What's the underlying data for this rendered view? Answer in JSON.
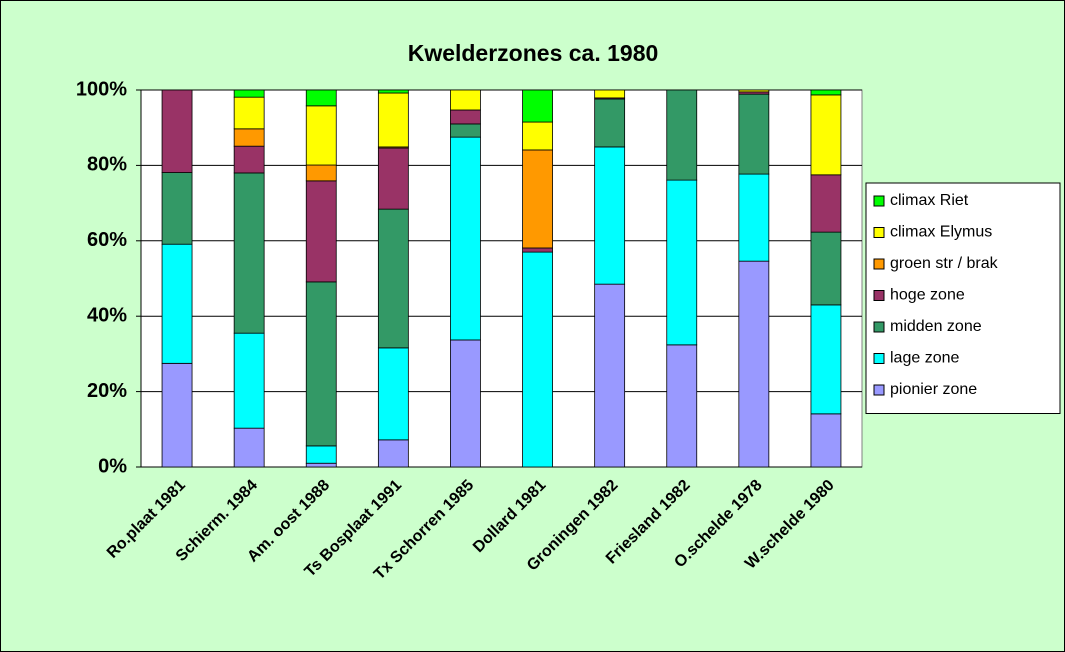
{
  "chart_data": {
    "type": "stacked_bar",
    "title": "Kwelderzones ca. 1980",
    "categories": [
      "Ro.plaat 1981",
      "Schierm. 1984",
      "Am. oost 1988",
      "Ts Bosplaat 1991",
      "Tx Schorren 1985",
      "Dollard 1981",
      "Groningen 1982",
      "Friesland 1982",
      "O.schelde 1978",
      "W.schelde 1980"
    ],
    "series": [
      {
        "name": "pionier zone",
        "color": "#9999ff",
        "values": [
          27.5,
          10.3,
          1.0,
          7.2,
          33.7,
          0,
          48.5,
          32.4,
          54.6,
          14.1
        ]
      },
      {
        "name": "lage zone",
        "color": "#00ffff",
        "values": [
          31.6,
          25.2,
          4.6,
          24.4,
          53.8,
          57.0,
          36.4,
          43.7,
          23.1,
          28.9
        ]
      },
      {
        "name": "midden zone",
        "color": "#339966",
        "values": [
          19.0,
          42.5,
          43.5,
          36.8,
          3.5,
          0,
          12.7,
          23.9,
          21.2,
          19.3
        ]
      },
      {
        "name": "hoge zone",
        "color": "#993366",
        "values": [
          21.9,
          7.1,
          26.8,
          16.2,
          3.7,
          1.1,
          0.3,
          0,
          0.6,
          15.2
        ]
      },
      {
        "name": "groen str / brak",
        "color": "#ff9900",
        "values": [
          0,
          4.6,
          4.2,
          0.3,
          0,
          26.0,
          0,
          0,
          0,
          0
        ]
      },
      {
        "name": "climax Elymus",
        "color": "#ffff00",
        "values": [
          0,
          8.4,
          15.7,
          14.3,
          5.3,
          7.4,
          2.1,
          0,
          0.5,
          21.2
        ]
      },
      {
        "name": "climax Riet",
        "color": "#00ff00",
        "values": [
          0,
          1.9,
          4.2,
          0.8,
          0,
          8.5,
          0,
          0,
          0,
          1.3
        ]
      }
    ],
    "ylim": [
      0,
      100
    ],
    "yticks": [
      {
        "value": 0,
        "label": "0%"
      },
      {
        "value": 20,
        "label": "20%"
      },
      {
        "value": 40,
        "label": "40%"
      },
      {
        "value": 60,
        "label": "60%"
      },
      {
        "value": 80,
        "label": "80%"
      },
      {
        "value": 100,
        "label": "100%"
      }
    ],
    "grid": true,
    "legend": "right"
  }
}
